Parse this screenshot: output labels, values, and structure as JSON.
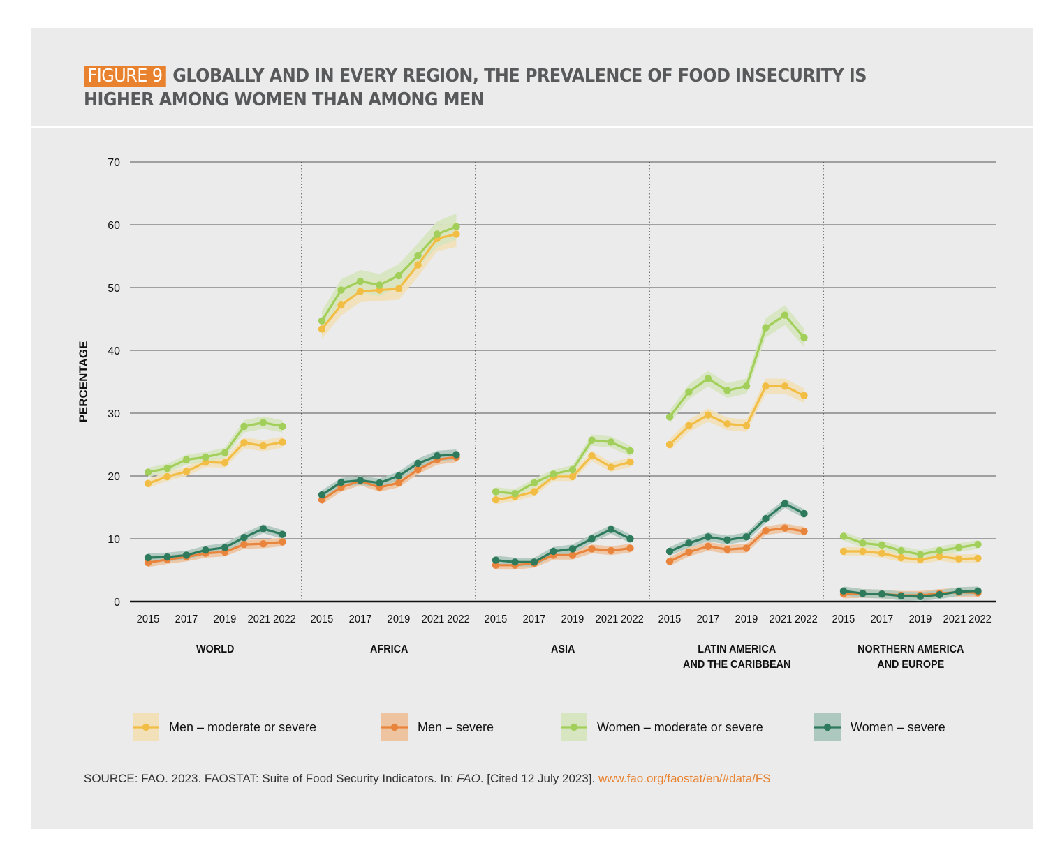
{
  "header": {
    "figure_label": "FIGURE 9",
    "title": "GLOBALLY AND IN EVERY REGION, THE PREVALENCE OF FOOD INSECURITY IS HIGHER AMONG WOMEN THAN AMONG MEN"
  },
  "chart_data": {
    "type": "line",
    "ylabel": "PERCENTAGE",
    "ylim": [
      0,
      70
    ],
    "yticks": [
      0,
      10,
      20,
      30,
      40,
      50,
      60,
      70
    ],
    "x": [
      2015,
      2016,
      2017,
      2018,
      2019,
      2020,
      2021,
      2022
    ],
    "xtick_labels": [
      "2015",
      "2017",
      "2019",
      "2021",
      "2022"
    ],
    "grid": true,
    "legend_position": "bottom",
    "series_styles": [
      {
        "name": "Men – moderate or severe",
        "color": "#f2bd45",
        "band": "#f2e1b8"
      },
      {
        "name": "Men – severe",
        "color": "#e8843c",
        "band": "#eec39f"
      },
      {
        "name": "Women – moderate or severe",
        "color": "#a1cf59",
        "band": "#d7e6c0"
      },
      {
        "name": "Women – severe",
        "color": "#2e7a5d",
        "band": "#adc8be"
      }
    ],
    "panels": [
      {
        "region_lines": [
          "WORLD"
        ],
        "series": [
          {
            "name": "Men – moderate or severe",
            "values": [
              18.8,
              19.9,
              20.7,
              22.2,
              22.1,
              25.3,
              24.8,
              25.4
            ]
          },
          {
            "name": "Men – severe",
            "values": [
              6.2,
              6.7,
              7.1,
              7.7,
              7.9,
              9.1,
              9.2,
              9.5
            ]
          },
          {
            "name": "Women – moderate or severe",
            "values": [
              20.6,
              21.2,
              22.6,
              23.0,
              23.7,
              27.9,
              28.5,
              27.9
            ]
          },
          {
            "name": "Women – severe",
            "values": [
              7.0,
              7.1,
              7.4,
              8.2,
              8.6,
              10.2,
              11.6,
              10.7
            ]
          }
        ]
      },
      {
        "region_lines": [
          "AFRICA"
        ],
        "series": [
          {
            "name": "Men – moderate or severe",
            "values": [
              43.4,
              47.2,
              49.4,
              49.6,
              49.8,
              53.6,
              57.8,
              58.5
            ]
          },
          {
            "name": "Men – severe",
            "values": [
              16.2,
              18.2,
              19.2,
              18.2,
              18.9,
              21.0,
              22.6,
              23.0
            ]
          },
          {
            "name": "Women – moderate or severe",
            "values": [
              44.7,
              49.6,
              51.0,
              50.4,
              51.9,
              55.1,
              58.5,
              59.7
            ]
          },
          {
            "name": "Women – severe",
            "values": [
              17.0,
              19.0,
              19.3,
              18.9,
              20.0,
              22.0,
              23.2,
              23.4
            ]
          }
        ]
      },
      {
        "region_lines": [
          "ASIA"
        ],
        "series": [
          {
            "name": "Men – moderate or severe",
            "values": [
              16.2,
              16.7,
              17.5,
              19.9,
              19.9,
              23.2,
              21.4,
              22.2
            ]
          },
          {
            "name": "Men – severe",
            "values": [
              5.8,
              5.8,
              6.1,
              7.4,
              7.4,
              8.4,
              8.1,
              8.5
            ]
          },
          {
            "name": "Women – moderate or severe",
            "values": [
              17.5,
              17.2,
              18.9,
              20.3,
              21.0,
              25.7,
              25.4,
              24.0
            ]
          },
          {
            "name": "Women – severe",
            "values": [
              6.6,
              6.3,
              6.3,
              8.0,
              8.4,
              10.0,
              11.5,
              10.0
            ]
          }
        ]
      },
      {
        "region_lines": [
          "LATIN AMERICA",
          "AND THE CARIBBEAN"
        ],
        "series": [
          {
            "name": "Men – moderate or severe",
            "values": [
              25.0,
              28.0,
              29.7,
              28.3,
              28.0,
              34.3,
              34.3,
              32.8
            ]
          },
          {
            "name": "Men – severe",
            "values": [
              6.4,
              7.9,
              8.8,
              8.3,
              8.5,
              11.3,
              11.7,
              11.2
            ]
          },
          {
            "name": "Women – moderate or severe",
            "values": [
              29.4,
              33.4,
              35.5,
              33.6,
              34.3,
              43.6,
              45.6,
              42.0
            ]
          },
          {
            "name": "Women – severe",
            "values": [
              8.0,
              9.3,
              10.3,
              9.8,
              10.3,
              13.2,
              15.6,
              14.0
            ]
          }
        ]
      },
      {
        "region_lines": [
          "NORTHERN AMERICA",
          "AND EUROPE"
        ],
        "series": [
          {
            "name": "Men – moderate or severe",
            "values": [
              8.0,
              8.0,
              7.7,
              7.0,
              6.7,
              7.2,
              6.8,
              6.9
            ]
          },
          {
            "name": "Men – severe",
            "values": [
              1.2,
              1.3,
              1.2,
              1.0,
              1.0,
              1.3,
              1.5,
              1.4
            ]
          },
          {
            "name": "Women – moderate or severe",
            "values": [
              10.4,
              9.3,
              9.0,
              8.1,
              7.5,
              8.1,
              8.6,
              9.1
            ]
          },
          {
            "name": "Women – severe",
            "values": [
              1.7,
              1.3,
              1.2,
              0.9,
              0.8,
              1.1,
              1.6,
              1.7
            ]
          }
        ]
      }
    ]
  },
  "source": {
    "prefix": "SOURCE: FAO. 2023. FAOSTAT: Suite of Food Security Indicators. In: ",
    "italic": "FAO",
    "suffix": ". [Cited 12 July 2023]. ",
    "link": "www.fao.org/faostat/en/#data/FS"
  }
}
